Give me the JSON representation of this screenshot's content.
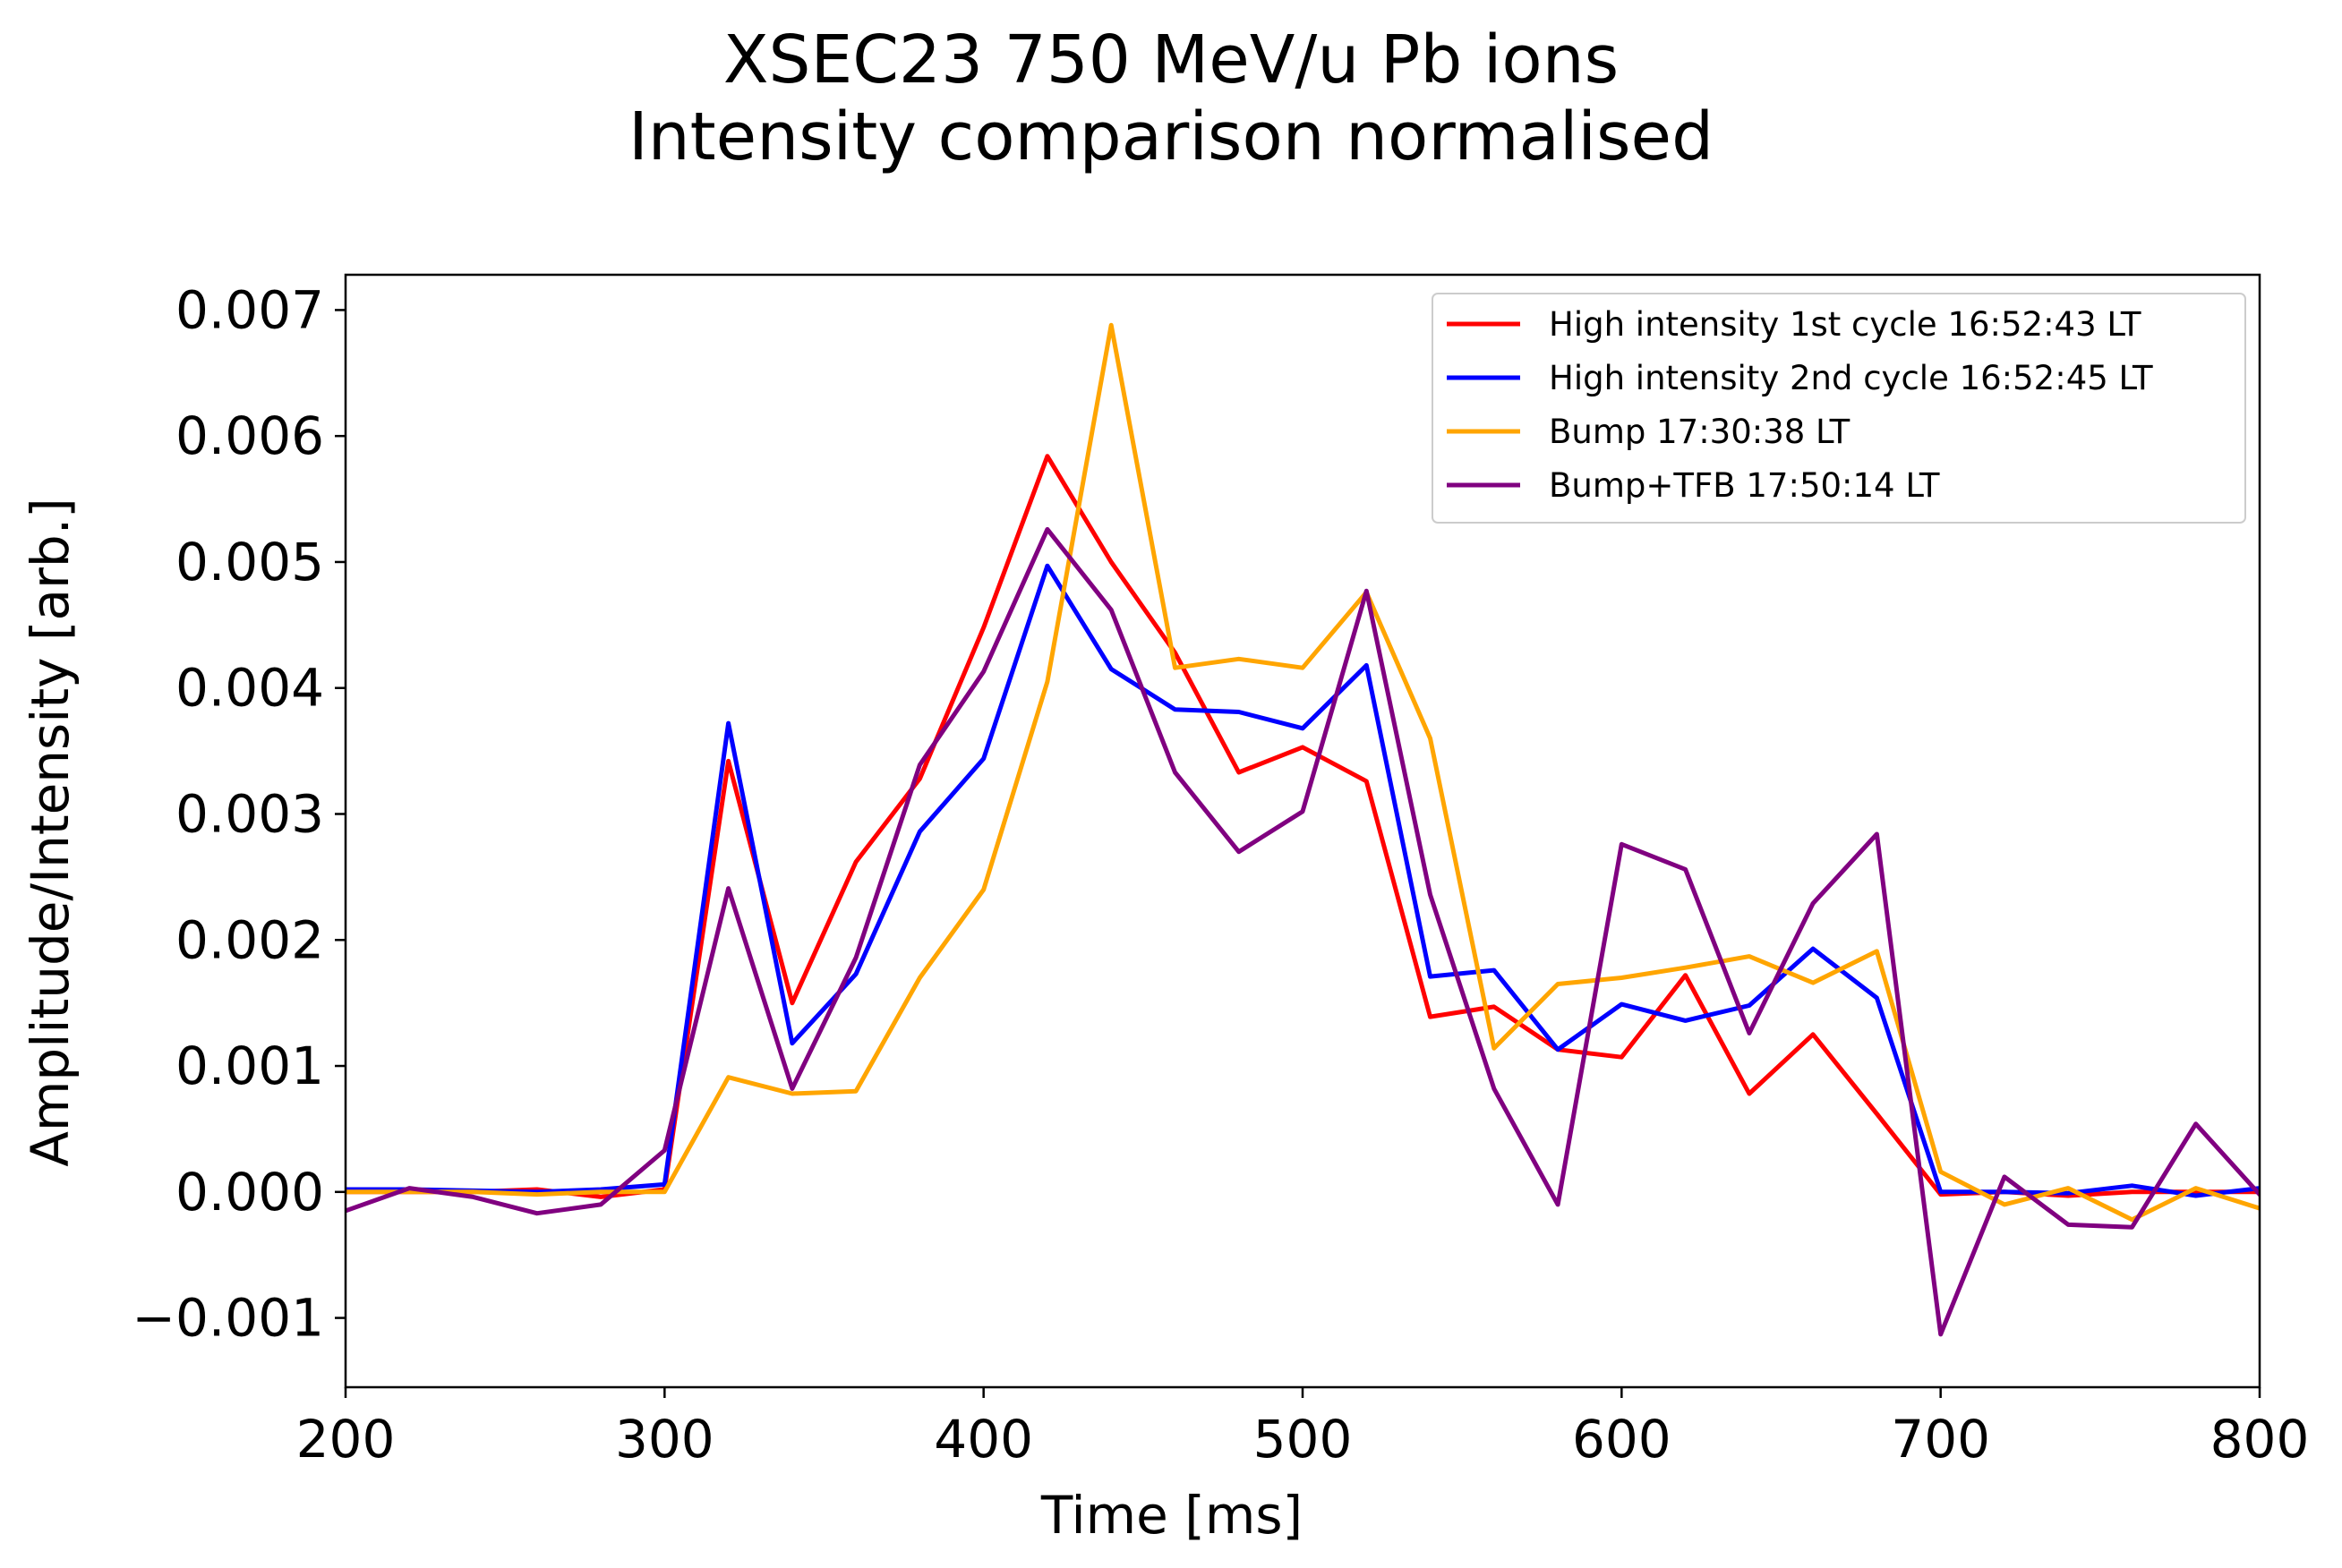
{
  "chart_data": {
    "type": "line",
    "title_lines": [
      "XSEC23 750 MeV/u Pb ions",
      "Intensity comparison normalised"
    ],
    "xlabel": "Time [ms]",
    "ylabel": "Amplitude/Intensity [arb.]",
    "xlim": [
      200,
      800
    ],
    "ylim": [
      -0.00155,
      0.00728
    ],
    "xticks": [
      200,
      300,
      400,
      500,
      600,
      700,
      800
    ],
    "xtick_labels": [
      "200",
      "300",
      "400",
      "500",
      "600",
      "700",
      "800"
    ],
    "yticks": [
      -0.001,
      0.0,
      0.001,
      0.002,
      0.003,
      0.004,
      0.005,
      0.006,
      0.007
    ],
    "ytick_labels": [
      "−0.001",
      "0.000",
      "0.001",
      "0.002",
      "0.003",
      "0.004",
      "0.005",
      "0.006",
      "0.007"
    ],
    "grid": false,
    "legend_position": "upper right",
    "x": [
      200,
      220,
      240,
      260,
      280,
      300,
      320,
      340,
      360,
      380,
      400,
      420,
      440,
      460,
      480,
      500,
      520,
      540,
      560,
      580,
      600,
      620,
      640,
      660,
      680,
      700,
      720,
      740,
      760,
      780,
      800
    ],
    "series": [
      {
        "name": "High intensity 1st cycle 16:52:43 LT",
        "color": "#ff0000",
        "values": [
          0.0,
          0.0,
          0.0,
          2e-05,
          -4e-05,
          2e-05,
          0.00342,
          0.0015,
          0.00262,
          0.00328,
          0.00448,
          0.00584,
          0.005,
          0.00428,
          0.00333,
          0.00353,
          0.00326,
          0.00139,
          0.00147,
          0.00113,
          0.00107,
          0.00172,
          0.00078,
          0.00125,
          0.00062,
          -2e-05,
          0.0,
          -3e-05,
          0.0,
          0.0,
          0.0
        ]
      },
      {
        "name": "High intensity 2nd cycle 16:52:45 LT",
        "color": "#0000ff",
        "values": [
          2e-05,
          2e-05,
          1e-05,
          0.0,
          2e-05,
          6e-05,
          0.00372,
          0.00118,
          0.00173,
          0.00286,
          0.00344,
          0.00497,
          0.00415,
          0.00383,
          0.00381,
          0.00368,
          0.00418,
          0.00171,
          0.00176,
          0.00113,
          0.00149,
          0.00136,
          0.00148,
          0.00193,
          0.00154,
          0.0,
          0.0,
          -1e-05,
          5e-05,
          -3e-05,
          3e-05
        ]
      },
      {
        "name": "Bump 17:30:38 LT",
        "color": "#ffa500",
        "values": [
          0.0,
          0.0,
          0.0,
          -2e-05,
          0.0,
          0.0,
          0.00091,
          0.00078,
          0.0008,
          0.0017,
          0.0024,
          0.00405,
          0.00688,
          0.00416,
          0.00423,
          0.00416,
          0.00476,
          0.0036,
          0.00114,
          0.00165,
          0.0017,
          0.00178,
          0.00187,
          0.00166,
          0.00191,
          0.00016,
          -0.0001,
          3e-05,
          -0.00022,
          3e-05,
          -0.00013
        ]
      },
      {
        "name": "Bump+TFB 17:50:14 LT",
        "color": "#800080",
        "values": [
          -0.00015,
          3e-05,
          -4e-05,
          -0.00017,
          -0.0001,
          0.00033,
          0.00241,
          0.00082,
          0.00186,
          0.00339,
          0.00413,
          0.00526,
          0.00462,
          0.00333,
          0.0027,
          0.00302,
          0.00477,
          0.00236,
          0.00082,
          -0.0001,
          0.00276,
          0.00256,
          0.00126,
          0.00229,
          0.00284,
          -0.00113,
          0.00012,
          -0.00026,
          -0.00028,
          0.00054,
          -2e-05
        ]
      }
    ]
  }
}
